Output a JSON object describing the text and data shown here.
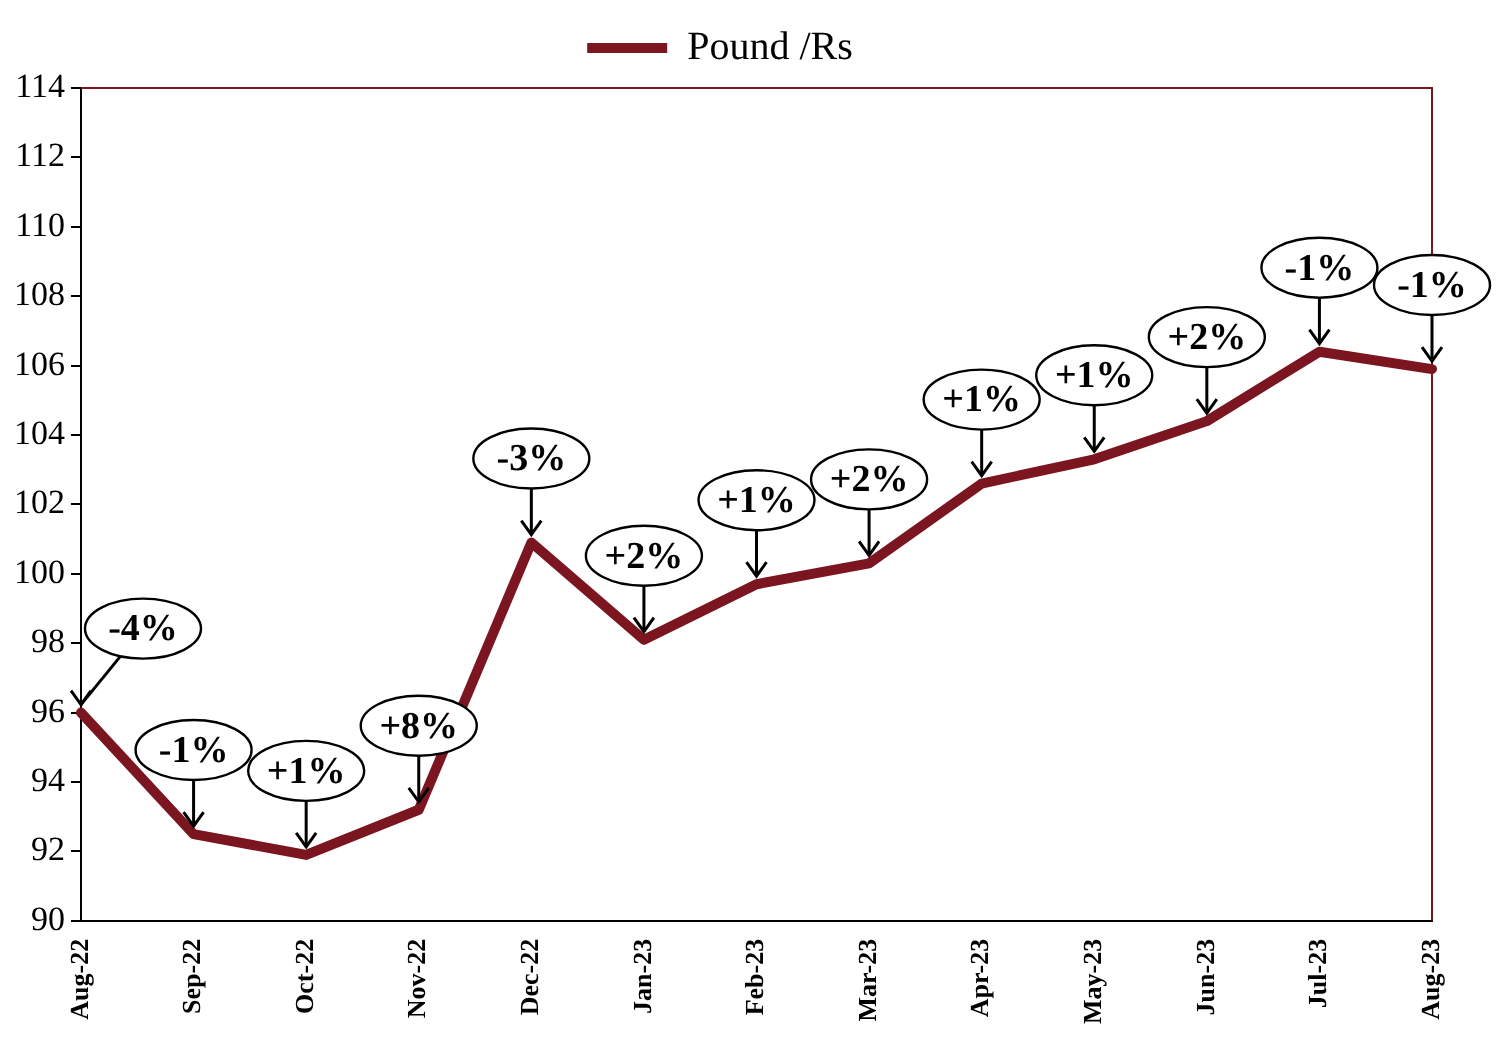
{
  "chart_data": {
    "type": "line",
    "categories": [
      "Aug-22",
      "Sep-22",
      "Oct-22",
      "Nov-22",
      "Dec-22",
      "Jan-23",
      "Feb-23",
      "Mar-23",
      "Apr-23",
      "May-23",
      "Jun-23",
      "Jul-23",
      "Aug-23"
    ],
    "series": [
      {
        "name": "Pound /Rs",
        "color": "#7b1620",
        "values": [
          96.0,
          92.5,
          91.9,
          93.2,
          100.9,
          98.1,
          99.7,
          100.3,
          102.6,
          103.3,
          104.4,
          106.4,
          105.9
        ]
      }
    ],
    "ylim": [
      90,
      114
    ],
    "yticks": [
      90,
      92,
      94,
      96,
      98,
      100,
      102,
      104,
      106,
      108,
      110,
      112,
      114
    ],
    "grid": false,
    "legend": "top",
    "marker": "none",
    "line_style": "solid",
    "annotations": [
      {
        "text": "-4%",
        "x": "Aug-22",
        "y": 96.0
      },
      {
        "text": "-1%",
        "x": "Sep-22",
        "y": 92.5
      },
      {
        "text": "+1%",
        "x": "Oct-22",
        "y": 91.9
      },
      {
        "text": "+8%",
        "x": "Nov-22",
        "y": 93.2
      },
      {
        "text": "-3%",
        "x": "Dec-22",
        "y": 100.9
      },
      {
        "text": "+2%",
        "x": "Jan-23",
        "y": 98.1
      },
      {
        "text": "+1%",
        "x": "Feb-23",
        "y": 99.7
      },
      {
        "text": "+2%",
        "x": "Mar-23",
        "y": 100.3
      },
      {
        "text": "+1%",
        "x": "Apr-23",
        "y": 102.6
      },
      {
        "text": "+1%",
        "x": "May-23",
        "y": 103.3
      },
      {
        "text": "+2%",
        "x": "Jun-23",
        "y": 104.4
      },
      {
        "text": "-1%",
        "x": "Jul-23",
        "y": 106.4
      },
      {
        "text": "-1%",
        "x": "Aug-23",
        "y": 105.9
      }
    ]
  }
}
